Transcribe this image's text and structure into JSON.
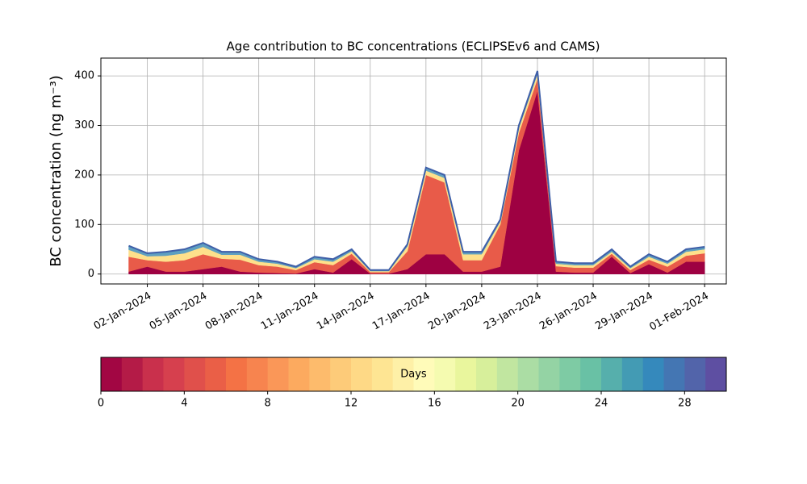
{
  "chart_data": {
    "type": "stacked_area",
    "title": "Age contribution to BC concentrations (ECLIPSEv6 and CAMS)",
    "y_label": "BC concentration (ng m⁻³)",
    "x": [
      "2024-01-01",
      "2024-01-02",
      "2024-01-03",
      "2024-01-04",
      "2024-01-05",
      "2024-01-06",
      "2024-01-07",
      "2024-01-08",
      "2024-01-09",
      "2024-01-10",
      "2024-01-11",
      "2024-01-12",
      "2024-01-13",
      "2024-01-14",
      "2024-01-15",
      "2024-01-16",
      "2024-01-17",
      "2024-01-18",
      "2024-01-19",
      "2024-01-20",
      "2024-01-21",
      "2024-01-22",
      "2024-01-23",
      "2024-01-24",
      "2024-01-25",
      "2024-01-26",
      "2024-01-27",
      "2024-01-28",
      "2024-01-29",
      "2024-01-30",
      "2024-01-31",
      "2024-02-01"
    ],
    "series": [
      {
        "color": "#9e0142",
        "values": [
          5,
          15,
          5,
          5,
          10,
          15,
          5,
          3,
          2,
          1,
          10,
          3,
          30,
          1,
          1,
          10,
          40,
          40,
          5,
          5,
          15,
          250,
          370,
          5,
          3,
          3,
          35,
          2,
          20,
          3,
          25,
          25
        ]
      },
      {
        "color": "#e85b49",
        "values": [
          30,
          13,
          20,
          23,
          30,
          16,
          24,
          15,
          13,
          7,
          14,
          15,
          11,
          3,
          3,
          36,
          160,
          145,
          23,
          23,
          85,
          35,
          24,
          11,
          10,
          10,
          6,
          6,
          9,
          12,
          12,
          17
        ]
      },
      {
        "color": "#fee08b",
        "values": [
          14,
          8,
          12,
          14,
          15,
          8,
          10,
          7,
          6,
          4,
          6,
          7,
          5,
          2,
          2,
          10,
          9,
          9,
          12,
          12,
          6,
          10,
          10,
          5,
          5,
          5,
          4,
          4,
          6,
          6,
          8,
          8
        ]
      },
      {
        "color": "#5e9fc0",
        "values": [
          8,
          6,
          8,
          8,
          8,
          6,
          6,
          5,
          4,
          3,
          5,
          5,
          4,
          2,
          2,
          4,
          6,
          6,
          5,
          5,
          4,
          5,
          6,
          4,
          4,
          4,
          5,
          3,
          5,
          4,
          5,
          5
        ]
      }
    ],
    "outline_color": "#3f5fa8",
    "xlim": [
      "2023-12-30T12:00",
      "2024-02-02T04:00"
    ],
    "xticks": [
      {
        "value": "2024-01-02",
        "label": "02-Jan-2024"
      },
      {
        "value": "2024-01-05",
        "label": "05-Jan-2024"
      },
      {
        "value": "2024-01-08",
        "label": "08-Jan-2024"
      },
      {
        "value": "2024-01-11",
        "label": "11-Jan-2024"
      },
      {
        "value": "2024-01-14",
        "label": "14-Jan-2024"
      },
      {
        "value": "2024-01-17",
        "label": "17-Jan-2024"
      },
      {
        "value": "2024-01-20",
        "label": "20-Jan-2024"
      },
      {
        "value": "2024-01-23",
        "label": "23-Jan-2024"
      },
      {
        "value": "2024-01-26",
        "label": "26-Jan-2024"
      },
      {
        "value": "2024-01-29",
        "label": "29-Jan-2024"
      },
      {
        "value": "2024-02-01",
        "label": "01-Feb-2024"
      }
    ],
    "ylim": [
      -20,
      436
    ],
    "yticks": [
      0,
      100,
      200,
      300,
      400
    ],
    "grid": true,
    "colorbar": {
      "label": "Days",
      "lim": [
        0,
        30
      ],
      "ticks": [
        0,
        4,
        8,
        12,
        16,
        20,
        24,
        28
      ],
      "colors": [
        "#a20643",
        "#b41b47",
        "#c9304c",
        "#d6404e",
        "#e0504b",
        "#ea5f47",
        "#f47245",
        "#f7844f",
        "#fa9758",
        "#fcaa5f",
        "#fdbb6c",
        "#fdcb79",
        "#fed986",
        "#fee593",
        "#fef0a7",
        "#fffbb9",
        "#f5fbb0",
        "#e9f69d",
        "#d7ef9b",
        "#c1e6a0",
        "#abdda4",
        "#94d3a4",
        "#7ecba4",
        "#69c1a5",
        "#56afac",
        "#439bb4",
        "#3589bc",
        "#4476b3",
        "#5264aa",
        "#5e4fa2"
      ]
    }
  }
}
